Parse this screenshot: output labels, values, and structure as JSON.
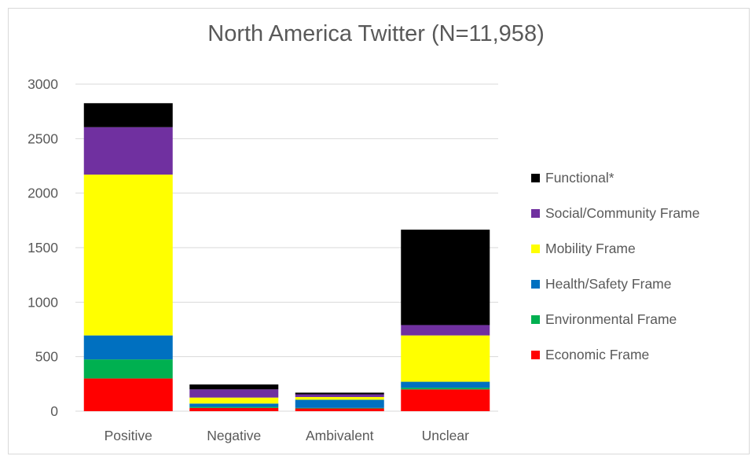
{
  "chart_data": {
    "type": "bar",
    "stacked": true,
    "title": "North America Twitter (N=11,958)",
    "categories": [
      "Positive",
      "Negative",
      "Ambivalent",
      "Unclear"
    ],
    "ylim": [
      0,
      3000
    ],
    "yticks": [
      "0",
      "500",
      "1000",
      "1500",
      "2000",
      "2500",
      "3000"
    ],
    "grid": true,
    "legend_position": "right",
    "series": [
      {
        "name": "Economic Frame",
        "color": "#ff0000",
        "values": [
          300,
          30,
          25,
          200
        ]
      },
      {
        "name": "Environmental Frame",
        "color": "#00b050",
        "values": [
          175,
          10,
          5,
          15
        ]
      },
      {
        "name": "Health/Safety Frame",
        "color": "#0070c0",
        "values": [
          220,
          30,
          75,
          55
        ]
      },
      {
        "name": "Mobility Frame",
        "color": "#ffff00",
        "values": [
          1475,
          55,
          25,
          425
        ]
      },
      {
        "name": "Social/Community Frame",
        "color": "#7030a0",
        "values": [
          435,
          75,
          25,
          95
        ]
      },
      {
        "name": "Functional*",
        "color": "#000000",
        "values": [
          220,
          45,
          15,
          875
        ]
      }
    ]
  }
}
